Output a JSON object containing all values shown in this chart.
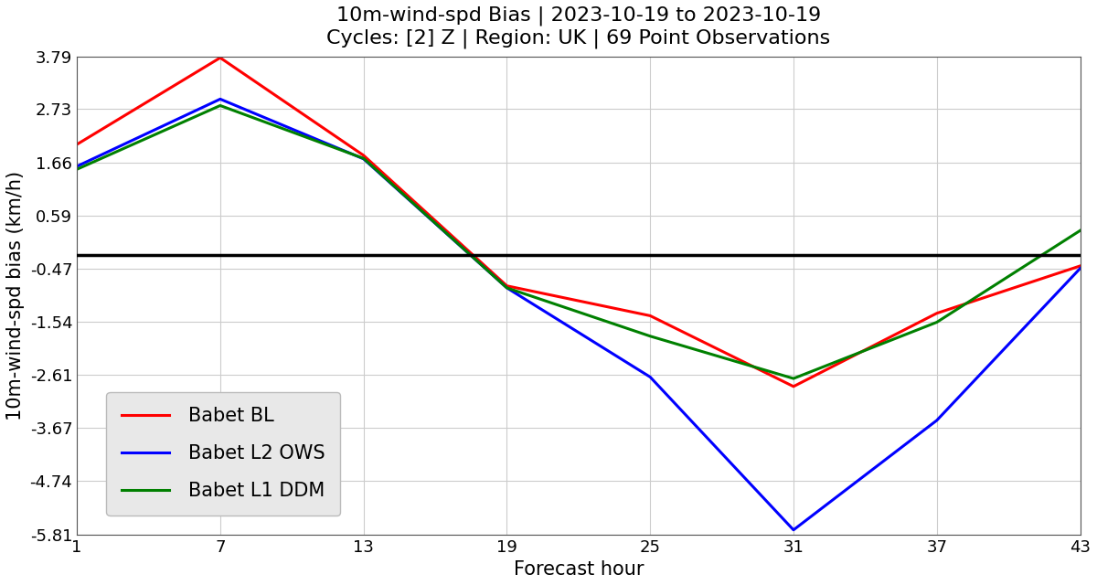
{
  "title_line1": "10m-wind-spd Bias | 2023-10-19 to 2023-10-19",
  "title_line2": "Cycles: [2] Z | Region: UK | 69 Point Observations",
  "xlabel": "Forecast hour",
  "ylabel": "10m-wind-spd bias (km/h)",
  "x_ticks": [
    1,
    7,
    13,
    19,
    25,
    31,
    37,
    43
  ],
  "y_ticks": [
    3.79,
    2.73,
    1.66,
    0.59,
    -0.47,
    -1.54,
    -2.61,
    -3.67,
    -4.74,
    -5.81
  ],
  "ylim": [
    -5.81,
    3.79
  ],
  "xlim": [
    1,
    43
  ],
  "hline_y": -0.2,
  "series": [
    {
      "label": "Babet BL",
      "color": "#ff0000",
      "x": [
        1,
        7,
        13,
        19,
        25,
        31,
        37,
        43
      ],
      "y": [
        2.02,
        3.76,
        1.8,
        -0.82,
        -1.42,
        -2.84,
        -1.37,
        -0.42
      ]
    },
    {
      "label": "Babet L2 OWS",
      "color": "#0000ff",
      "x": [
        1,
        7,
        13,
        19,
        25,
        31,
        37,
        43
      ],
      "y": [
        1.58,
        2.93,
        1.73,
        -0.86,
        -2.65,
        -5.72,
        -3.52,
        -0.47
      ]
    },
    {
      "label": "Babet L1 DDM",
      "color": "#008000",
      "x": [
        1,
        7,
        13,
        19,
        25,
        31,
        37,
        43
      ],
      "y": [
        1.52,
        2.8,
        1.74,
        -0.86,
        -1.83,
        -2.68,
        -1.55,
        0.29
      ]
    }
  ],
  "background_color": "#ffffff",
  "grid_color": "#cccccc",
  "title_fontsize": 16,
  "axis_label_fontsize": 15,
  "tick_fontsize": 13,
  "legend_fontsize": 15,
  "linewidth": 2.2,
  "legend_facecolor": "#e8e8e8",
  "legend_edgecolor": "#bbbbbb"
}
